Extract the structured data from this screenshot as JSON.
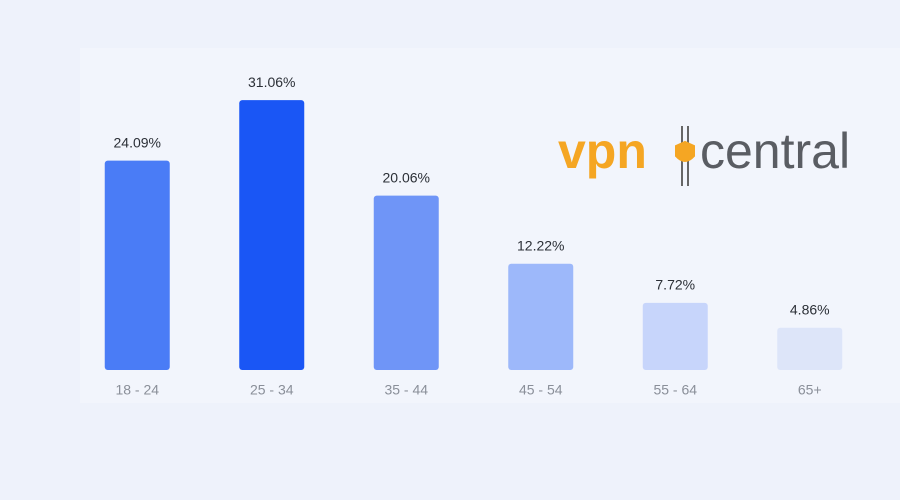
{
  "chart_data": {
    "type": "bar",
    "categories": [
      "18 - 24",
      "25 - 34",
      "35 - 44",
      "45 - 54",
      "55 - 64",
      "65+"
    ],
    "values": [
      24.09,
      31.06,
      20.06,
      12.22,
      7.72,
      4.86
    ],
    "value_labels": [
      "24.09%",
      "31.06%",
      "20.06%",
      "12.22%",
      "7.72%",
      "4.86%"
    ],
    "colors": [
      "#4a7cf6",
      "#1a56f5",
      "#6f95f7",
      "#9db8fa",
      "#c7d5fb",
      "#dde5f9"
    ]
  },
  "logo": {
    "left": "vpn",
    "right": "central"
  }
}
